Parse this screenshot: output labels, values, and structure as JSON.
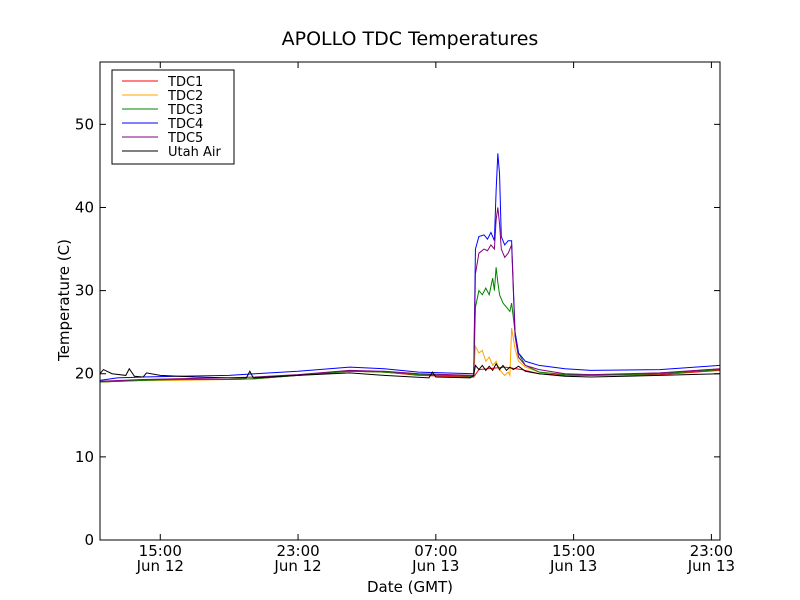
{
  "chart_data": {
    "type": "line",
    "title": "APOLLO TDC Temperatures",
    "xlabel": "Date (GMT)",
    "ylabel": "Temperature (C)",
    "xlim_hours": [
      11.5,
      47.5
    ],
    "ylim": [
      0,
      57.5
    ],
    "yticks": [
      0,
      10,
      20,
      30,
      40,
      50
    ],
    "xticks": [
      {
        "t": 15,
        "time": "15:00",
        "date": "Jun 12"
      },
      {
        "t": 23,
        "time": "23:00",
        "date": "Jun 12"
      },
      {
        "t": 31,
        "time": "07:00",
        "date": "Jun 13"
      },
      {
        "t": 39,
        "time": "15:00",
        "date": "Jun 13"
      },
      {
        "t": 47,
        "time": "23:00",
        "date": "Jun 13"
      }
    ],
    "x_unit": "hours since Jun 12 00:00 GMT",
    "legend_position": "upper-left",
    "series": [
      {
        "name": "TDC1",
        "color": "#ff0000",
        "points": [
          [
            11.5,
            19.0
          ],
          [
            12.5,
            19.1
          ],
          [
            14,
            19.2
          ],
          [
            16,
            19.3
          ],
          [
            19,
            19.3
          ],
          [
            20.5,
            19.4
          ],
          [
            23,
            19.8
          ],
          [
            26,
            20.3
          ],
          [
            28,
            20.2
          ],
          [
            30,
            19.8
          ],
          [
            33.2,
            19.6
          ],
          [
            33.5,
            20.5
          ],
          [
            35,
            20.8
          ],
          [
            36,
            20.5
          ],
          [
            37,
            20.0
          ],
          [
            38.5,
            19.8
          ],
          [
            40,
            19.8
          ],
          [
            44,
            19.9
          ],
          [
            47.5,
            20.4
          ]
        ]
      },
      {
        "name": "TDC2",
        "color": "#ffa500",
        "points": [
          [
            11.5,
            19.0
          ],
          [
            14,
            19.2
          ],
          [
            16,
            19.2
          ],
          [
            19,
            19.3
          ],
          [
            20.5,
            19.4
          ],
          [
            23,
            19.8
          ],
          [
            26,
            20.3
          ],
          [
            28,
            20.2
          ],
          [
            30,
            19.9
          ],
          [
            33.2,
            19.7
          ],
          [
            33.3,
            23.3
          ],
          [
            33.5,
            22.5
          ],
          [
            33.7,
            22.8
          ],
          [
            33.9,
            21.5
          ],
          [
            34.1,
            22.0
          ],
          [
            34.3,
            21.0
          ],
          [
            34.5,
            21.5
          ],
          [
            34.7,
            20.5
          ],
          [
            34.9,
            20.0
          ],
          [
            35.0,
            19.8
          ],
          [
            35.2,
            20.2
          ],
          [
            35.3,
            19.8
          ],
          [
            35.4,
            25.5
          ],
          [
            35.6,
            23.0
          ],
          [
            35.8,
            21.5
          ],
          [
            36.2,
            20.8
          ],
          [
            37,
            20.2
          ],
          [
            38.5,
            19.9
          ],
          [
            40,
            19.8
          ],
          [
            44,
            20.0
          ],
          [
            47.5,
            20.5
          ]
        ]
      },
      {
        "name": "TDC3",
        "color": "#008000",
        "points": [
          [
            11.5,
            19.0
          ],
          [
            14,
            19.2
          ],
          [
            16,
            19.3
          ],
          [
            19,
            19.3
          ],
          [
            20.5,
            19.4
          ],
          [
            23,
            19.8
          ],
          [
            26,
            20.3
          ],
          [
            28,
            20.2
          ],
          [
            30,
            19.9
          ],
          [
            33.2,
            19.7
          ],
          [
            33.3,
            28.0
          ],
          [
            33.5,
            30.0
          ],
          [
            33.7,
            29.5
          ],
          [
            33.9,
            30.3
          ],
          [
            34.1,
            29.5
          ],
          [
            34.3,
            31.5
          ],
          [
            34.4,
            30.0
          ],
          [
            34.5,
            32.8
          ],
          [
            34.6,
            31.0
          ],
          [
            34.7,
            29.5
          ],
          [
            34.9,
            28.5
          ],
          [
            35.1,
            28.0
          ],
          [
            35.3,
            27.5
          ],
          [
            35.4,
            28.5
          ],
          [
            35.6,
            25.0
          ],
          [
            35.8,
            22.5
          ],
          [
            36.2,
            21.0
          ],
          [
            37,
            20.2
          ],
          [
            38.5,
            19.9
          ],
          [
            40,
            19.8
          ],
          [
            44,
            20.0
          ],
          [
            47.5,
            20.5
          ]
        ]
      },
      {
        "name": "TDC4",
        "color": "#0000ff",
        "points": [
          [
            11.5,
            19.2
          ],
          [
            12.5,
            19.5
          ],
          [
            14,
            19.6
          ],
          [
            16,
            19.7
          ],
          [
            19,
            19.8
          ],
          [
            20.5,
            20.0
          ],
          [
            23,
            20.3
          ],
          [
            26,
            20.8
          ],
          [
            28,
            20.6
          ],
          [
            30,
            20.2
          ],
          [
            33.2,
            20.0
          ],
          [
            33.3,
            35.0
          ],
          [
            33.5,
            36.5
          ],
          [
            33.8,
            36.7
          ],
          [
            34.0,
            36.2
          ],
          [
            34.2,
            37.0
          ],
          [
            34.4,
            36.0
          ],
          [
            34.5,
            42.0
          ],
          [
            34.6,
            46.5
          ],
          [
            34.7,
            44.0
          ],
          [
            34.8,
            36.5
          ],
          [
            35.0,
            35.5
          ],
          [
            35.2,
            36.0
          ],
          [
            35.4,
            36.0
          ],
          [
            35.6,
            25.0
          ],
          [
            35.8,
            22.5
          ],
          [
            36.2,
            21.5
          ],
          [
            37,
            21.0
          ],
          [
            38.5,
            20.6
          ],
          [
            40,
            20.4
          ],
          [
            44,
            20.5
          ],
          [
            47.5,
            21.0
          ]
        ]
      },
      {
        "name": "TDC5",
        "color": "#800080",
        "points": [
          [
            11.5,
            19.1
          ],
          [
            14,
            19.3
          ],
          [
            16,
            19.4
          ],
          [
            19,
            19.5
          ],
          [
            20.5,
            19.6
          ],
          [
            23,
            19.9
          ],
          [
            26,
            20.4
          ],
          [
            28,
            20.3
          ],
          [
            30,
            20.0
          ],
          [
            33.2,
            19.8
          ],
          [
            33.3,
            32.0
          ],
          [
            33.5,
            34.5
          ],
          [
            33.8,
            35.0
          ],
          [
            34.0,
            34.8
          ],
          [
            34.2,
            35.5
          ],
          [
            34.4,
            35.0
          ],
          [
            34.5,
            38.5
          ],
          [
            34.6,
            40.0
          ],
          [
            34.7,
            38.0
          ],
          [
            34.8,
            35.0
          ],
          [
            35.0,
            34.0
          ],
          [
            35.2,
            34.5
          ],
          [
            35.4,
            35.5
          ],
          [
            35.6,
            24.5
          ],
          [
            35.8,
            22.0
          ],
          [
            36.2,
            21.0
          ],
          [
            37,
            20.5
          ],
          [
            38.5,
            20.0
          ],
          [
            40,
            19.9
          ],
          [
            44,
            20.1
          ],
          [
            47.5,
            20.6
          ]
        ]
      },
      {
        "name": "Utah Air",
        "color": "#000000",
        "points": [
          [
            11.5,
            20.0
          ],
          [
            11.7,
            20.5
          ],
          [
            12.2,
            20.0
          ],
          [
            13.0,
            19.8
          ],
          [
            13.2,
            20.6
          ],
          [
            13.5,
            19.7
          ],
          [
            14,
            19.6
          ],
          [
            14.2,
            20.1
          ],
          [
            15,
            19.8
          ],
          [
            17,
            19.6
          ],
          [
            19,
            19.5
          ],
          [
            20.0,
            19.5
          ],
          [
            20.2,
            20.3
          ],
          [
            20.4,
            19.5
          ],
          [
            23,
            19.8
          ],
          [
            26,
            20.1
          ],
          [
            28,
            19.8
          ],
          [
            30.6,
            19.5
          ],
          [
            30.8,
            20.2
          ],
          [
            31.0,
            19.6
          ],
          [
            33.0,
            19.5
          ],
          [
            33.2,
            19.8
          ],
          [
            33.3,
            21.0
          ],
          [
            33.5,
            20.5
          ],
          [
            33.7,
            21.0
          ],
          [
            33.9,
            20.4
          ],
          [
            34.1,
            20.9
          ],
          [
            34.3,
            20.4
          ],
          [
            34.5,
            21.2
          ],
          [
            34.7,
            20.5
          ],
          [
            34.9,
            21.0
          ],
          [
            35.1,
            20.4
          ],
          [
            35.3,
            20.8
          ],
          [
            35.5,
            20.5
          ],
          [
            35.8,
            20.9
          ],
          [
            36.2,
            20.3
          ],
          [
            37,
            20.0
          ],
          [
            38.5,
            19.7
          ],
          [
            40,
            19.6
          ],
          [
            44,
            19.8
          ],
          [
            47.5,
            20.0
          ]
        ]
      }
    ]
  }
}
